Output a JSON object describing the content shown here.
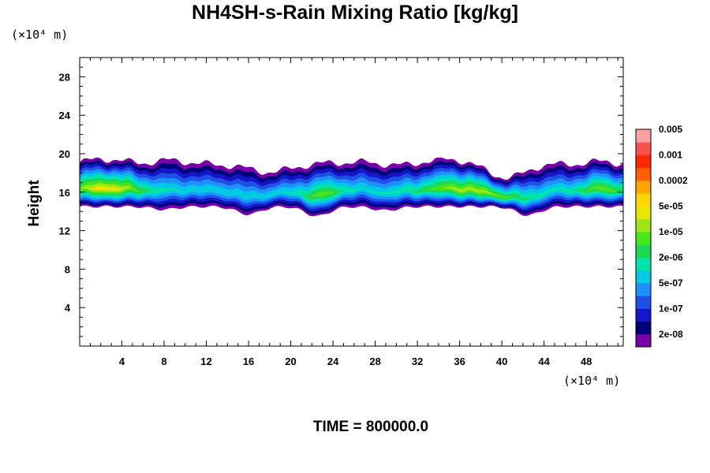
{
  "chart_data": {
    "type": "heatmap",
    "title": "NH4SH-s-Rain Mixing Ratio [kg/kg]",
    "ylabel": "Height",
    "x_unit_label": "(×10⁴ m)",
    "y_unit_label": "(×10⁴ m)",
    "time_label": "TIME = 800000.0",
    "x_range": [
      0,
      51.5
    ],
    "y_range": [
      0,
      30
    ],
    "x_ticks": [
      4,
      8,
      12,
      16,
      20,
      24,
      28,
      32,
      36,
      40,
      44,
      48
    ],
    "x_tick_labels": [
      "4",
      "8",
      "12",
      "16",
      "20",
      "24",
      "28",
      "32",
      "36",
      "40",
      "44",
      "48"
    ],
    "y_ticks": [
      4,
      8,
      12,
      16,
      20,
      24,
      28
    ],
    "y_tick_labels": [
      "4",
      "8",
      "12",
      "16",
      "20",
      "24",
      "28"
    ],
    "colorbar": {
      "colors": [
        "#7a00a8",
        "#00007a",
        "#1414c8",
        "#1f50e6",
        "#1e90ff",
        "#00c8e6",
        "#00e6aa",
        "#1ed755",
        "#46e61e",
        "#a0e614",
        "#e6e600",
        "#ffd700",
        "#ffa500",
        "#ff5f00",
        "#ff2800",
        "#ff5050",
        "#ffa0a0"
      ],
      "labels": [
        "2e-08",
        "1e-07",
        "5e-07",
        "2e-06",
        "1e-05",
        "5e-05",
        "0.0002",
        "0.001",
        "0.005"
      ]
    },
    "cloud_layer": {
      "base_height": 14.5,
      "typical_top": 19.0,
      "max_top": 19.6,
      "min_base": 13.5
    }
  }
}
